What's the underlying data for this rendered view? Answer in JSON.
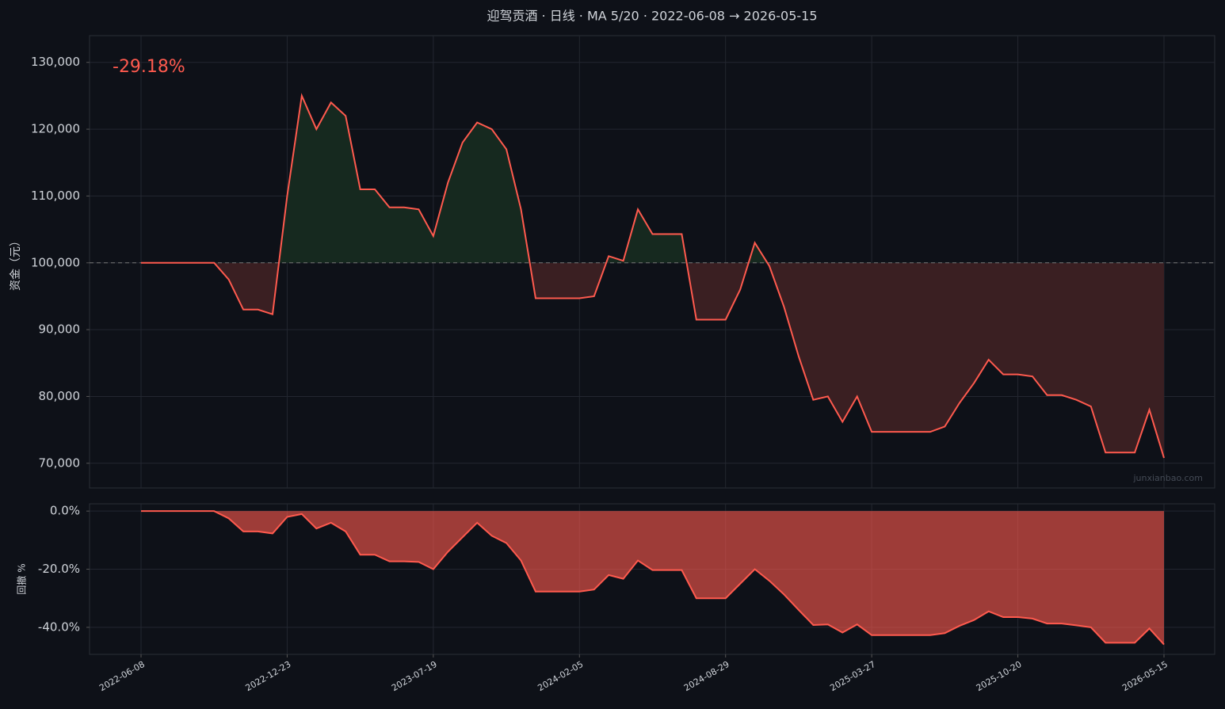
{
  "chart_data": [
    {
      "type": "line",
      "title": "迎驾贡酒 · 日线 · MA 5/20 · 2022-06-08 → 2026-05-15",
      "annotation": "-29.18%",
      "ylabel": "资金（元）",
      "watermark": "junxianbao.com",
      "ylim": [
        66300,
        134000
      ],
      "yticks": [
        {
          "value": 70000,
          "label": "70,000"
        },
        {
          "value": 80000,
          "label": "80,000"
        },
        {
          "value": 90000,
          "label": "90,000"
        },
        {
          "value": 100000,
          "label": "100,000"
        },
        {
          "value": 110000,
          "label": "110,000"
        },
        {
          "value": 120000,
          "label": "120,000"
        },
        {
          "value": 130000,
          "label": "130,000"
        }
      ],
      "baseline": 100000,
      "grid": true,
      "series": [
        {
          "name": "资金",
          "color": "#ff5a4e",
          "values": [
            100000,
            100000,
            100000,
            100000,
            100000,
            100000,
            97500,
            93000,
            93000,
            92300,
            110000,
            125000,
            120000,
            124000,
            122000,
            111000,
            111000,
            108300,
            108300,
            108000,
            104000,
            112000,
            118000,
            121000,
            120000,
            117000,
            108000,
            94700,
            94700,
            94700,
            94700,
            95000,
            101000,
            100300,
            108000,
            104300,
            104300,
            104300,
            91500,
            91500,
            91500,
            96000,
            103000,
            99500,
            93400,
            86000,
            79500,
            80000,
            76200,
            80000,
            74700,
            74700,
            74700,
            74700,
            74700,
            75500,
            79000,
            82000,
            85500,
            83300,
            83300,
            83000,
            80200,
            80200,
            79500,
            78500,
            71600,
            71600,
            71600,
            78000,
            70800
          ]
        }
      ]
    },
    {
      "type": "area",
      "ylabel": "回撤 %",
      "ylim": [
        -49.3,
        2.5
      ],
      "yticks": [
        {
          "value": 0,
          "label": "0.0%"
        },
        {
          "value": -20,
          "label": "-20.0%"
        },
        {
          "value": -40,
          "label": "-40.0%"
        }
      ],
      "grid": true,
      "categories": [
        "2022-06-08",
        null,
        null,
        null,
        null,
        null,
        null,
        null,
        null,
        null,
        "2022-12-23",
        null,
        null,
        null,
        null,
        null,
        null,
        null,
        null,
        null,
        "2023-07-19",
        null,
        null,
        null,
        null,
        null,
        null,
        null,
        null,
        null,
        "2024-02-05",
        null,
        null,
        null,
        null,
        null,
        null,
        null,
        null,
        null,
        "2024-08-29",
        null,
        null,
        null,
        null,
        null,
        null,
        null,
        null,
        null,
        "2025-03-27",
        null,
        null,
        null,
        null,
        null,
        null,
        null,
        null,
        null,
        "2025-10-20",
        null,
        null,
        null,
        null,
        null,
        null,
        null,
        null,
        null,
        "2026-05-15"
      ],
      "series": [
        {
          "name": "回撤",
          "color": "#ff5a4e",
          "values": [
            0,
            0,
            0,
            0,
            0,
            0,
            -2.5,
            -7,
            -7,
            -7.7,
            -2,
            -1,
            -6,
            -4,
            -7,
            -15,
            -15,
            -17.3,
            -17.3,
            -17.5,
            -20,
            -14,
            -9,
            -4,
            -8.5,
            -11,
            -17,
            -27.7,
            -27.7,
            -27.7,
            -27.7,
            -27,
            -22,
            -23.3,
            -17,
            -20.3,
            -20.3,
            -20.3,
            -30,
            -30,
            -30,
            -25,
            -20,
            -24,
            -28.7,
            -34,
            -39.2,
            -39,
            -41.8,
            -39,
            -42.7,
            -42.7,
            -42.7,
            -42.7,
            -42.7,
            -42,
            -39.5,
            -37.5,
            -34.5,
            -36.5,
            -36.5,
            -37,
            -38.7,
            -38.7,
            -39.3,
            -40,
            -45.3,
            -45.3,
            -45.3,
            -40.4,
            -45.9
          ]
        }
      ]
    }
  ]
}
